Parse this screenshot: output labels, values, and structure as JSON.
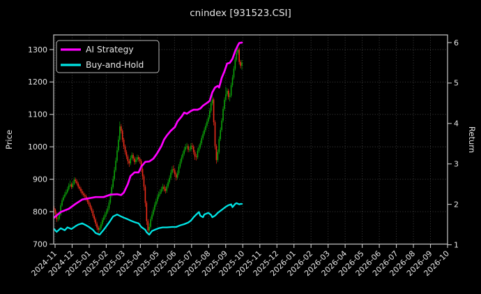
{
  "figure": {
    "title": "cnindex [931523.CSI]"
  },
  "legend": {
    "items": [
      {
        "label": "AI Strategy",
        "color": "#ff00ff"
      },
      {
        "label": "Buy-and-Hold",
        "color": "#00e5e5"
      }
    ]
  },
  "chart_data": {
    "type": "candlestick+line",
    "title": "cnindex [931523.CSI]",
    "background": "#000000",
    "grid": true,
    "x_axis": {
      "tick_labels": [
        "2024-11",
        "2024-12",
        "2025-01",
        "2025-02",
        "2025-03",
        "2025-04",
        "2025-05",
        "2025-06",
        "2025-07",
        "2025-08",
        "2025-09",
        "2025-10",
        "2025-11",
        "2025-12",
        "2026-01",
        "2026-02",
        "2026-03",
        "2026-04",
        "2026-05",
        "2026-06",
        "2026-07",
        "2026-08",
        "2026-09",
        "2026-10"
      ],
      "label_rotation_deg": 45,
      "data_span_ticks": 11.0
    },
    "y_axis_left": {
      "label": "Price",
      "ticks": [
        700,
        800,
        900,
        1000,
        1100,
        1200,
        1300
      ],
      "range": [
        702,
        1346
      ]
    },
    "y_axis_right": {
      "label": "Return",
      "ticks": [
        1,
        2,
        3,
        4,
        5,
        6
      ],
      "range": [
        1.05,
        6.2
      ]
    },
    "candles": {
      "up_color": "#0ca30a",
      "down_color": "#ef2d1a",
      "ohlc": [
        [
          812,
          818,
          800,
          806
        ],
        [
          806,
          810,
          788,
          794
        ],
        [
          794,
          798,
          768,
          777
        ],
        [
          777,
          786,
          770,
          779
        ],
        [
          779,
          796,
          774,
          791
        ],
        [
          791,
          826,
          787,
          819
        ],
        [
          819,
          842,
          815,
          835
        ],
        [
          835,
          852,
          831,
          845
        ],
        [
          845,
          861,
          841,
          853
        ],
        [
          853,
          868,
          849,
          860
        ],
        [
          860,
          877,
          856,
          869
        ],
        [
          869,
          888,
          865,
          880
        ],
        [
          880,
          896,
          876,
          884
        ],
        [
          884,
          890,
          870,
          876
        ],
        [
          876,
          893,
          872,
          886
        ],
        [
          886,
          906,
          882,
          899
        ],
        [
          899,
          905,
          888,
          894
        ],
        [
          894,
          900,
          881,
          887
        ],
        [
          887,
          892,
          871,
          877
        ],
        [
          877,
          883,
          865,
          871
        ],
        [
          871,
          877,
          857,
          863
        ],
        [
          863,
          869,
          850,
          856
        ],
        [
          856,
          862,
          845,
          851
        ],
        [
          851,
          857,
          841,
          847
        ],
        [
          847,
          853,
          832,
          838
        ],
        [
          838,
          844,
          824,
          830
        ],
        [
          830,
          836,
          816,
          822
        ],
        [
          822,
          828,
          806,
          812
        ],
        [
          812,
          818,
          796,
          802
        ],
        [
          802,
          808,
          781,
          787
        ],
        [
          787,
          793,
          768,
          776
        ],
        [
          776,
          782,
          755,
          763
        ],
        [
          763,
          769,
          743,
          751
        ],
        [
          751,
          757,
          730,
          744
        ],
        [
          744,
          756,
          738,
          749
        ],
        [
          749,
          768,
          743,
          761
        ],
        [
          761,
          781,
          755,
          774
        ],
        [
          774,
          789,
          768,
          782
        ],
        [
          782,
          798,
          776,
          791
        ],
        [
          791,
          807,
          785,
          800
        ],
        [
          800,
          818,
          794,
          810
        ],
        [
          810,
          836,
          804,
          828
        ],
        [
          828,
          858,
          822,
          850
        ],
        [
          850,
          884,
          844,
          876
        ],
        [
          876,
          910,
          870,
          900
        ],
        [
          900,
          938,
          894,
          928
        ],
        [
          928,
          967,
          922,
          957
        ],
        [
          957,
          999,
          951,
          989
        ],
        [
          989,
          1034,
          983,
          1022
        ],
        [
          1022,
          1078,
          1016,
          1063
        ],
        [
          1063,
          1070,
          1041,
          1049
        ],
        [
          1049,
          1055,
          1014,
          1022
        ],
        [
          1022,
          1028,
          993,
          1001
        ],
        [
          1001,
          1007,
          976,
          984
        ],
        [
          984,
          990,
          962,
          970
        ],
        [
          970,
          976,
          946,
          956
        ],
        [
          956,
          962,
          938,
          949
        ],
        [
          949,
          973,
          943,
          965
        ],
        [
          965,
          983,
          959,
          975
        ],
        [
          975,
          981,
          956,
          964
        ],
        [
          964,
          970,
          945,
          953
        ],
        [
          953,
          968,
          947,
          960
        ],
        [
          960,
          976,
          954,
          968
        ],
        [
          968,
          974,
          954,
          962
        ],
        [
          962,
          968,
          948,
          956
        ],
        [
          956,
          962,
          922,
          932
        ],
        [
          932,
          938,
          899,
          909
        ],
        [
          909,
          915,
          865,
          877
        ],
        [
          877,
          883,
          815,
          827
        ],
        [
          827,
          833,
          759,
          771
        ],
        [
          771,
          777,
          728,
          742
        ],
        [
          742,
          764,
          736,
          753
        ],
        [
          753,
          785,
          747,
          777
        ],
        [
          777,
          799,
          771,
          791
        ],
        [
          791,
          814,
          785,
          806
        ],
        [
          806,
          829,
          800,
          821
        ],
        [
          821,
          840,
          815,
          832
        ],
        [
          832,
          853,
          826,
          845
        ],
        [
          845,
          862,
          839,
          854
        ],
        [
          854,
          869,
          848,
          861
        ],
        [
          861,
          877,
          855,
          869
        ],
        [
          869,
          886,
          863,
          877
        ],
        [
          877,
          883,
          862,
          870
        ],
        [
          870,
          877,
          856,
          864
        ],
        [
          864,
          886,
          858,
          878
        ],
        [
          878,
          899,
          872,
          891
        ],
        [
          891,
          912,
          885,
          904
        ],
        [
          904,
          929,
          898,
          920
        ],
        [
          920,
          940,
          914,
          931
        ],
        [
          931,
          943,
          920,
          928
        ],
        [
          928,
          934,
          907,
          915
        ],
        [
          915,
          921,
          896,
          905
        ],
        [
          905,
          927,
          899,
          919
        ],
        [
          919,
          947,
          913,
          939
        ],
        [
          939,
          962,
          933,
          954
        ],
        [
          954,
          975,
          948,
          967
        ],
        [
          967,
          987,
          961,
          979
        ],
        [
          979,
          999,
          973,
          991
        ],
        [
          991,
          1009,
          985,
          1000
        ],
        [
          1000,
          1012,
          994,
          1002
        ],
        [
          1002,
          1008,
          983,
          991
        ],
        [
          991,
          1000,
          984,
          992
        ],
        [
          992,
          1011,
          986,
          1003
        ],
        [
          1003,
          1012,
          992,
          1000
        ],
        [
          1000,
          1006,
          976,
          984
        ],
        [
          984,
          990,
          960,
          970
        ],
        [
          970,
          978,
          958,
          968
        ],
        [
          968,
          996,
          962,
          988
        ],
        [
          988,
          1007,
          982,
          999
        ],
        [
          999,
          1019,
          993,
          1011
        ],
        [
          1011,
          1035,
          1005,
          1027
        ],
        [
          1027,
          1048,
          1021,
          1040
        ],
        [
          1040,
          1060,
          1034,
          1052
        ],
        [
          1052,
          1073,
          1046,
          1065
        ],
        [
          1065,
          1086,
          1059,
          1078
        ],
        [
          1078,
          1099,
          1072,
          1091
        ],
        [
          1091,
          1119,
          1085,
          1111
        ],
        [
          1111,
          1142,
          1105,
          1134
        ],
        [
          1134,
          1160,
          1128,
          1146
        ],
        [
          1146,
          1152,
          1066,
          1076
        ],
        [
          1076,
          1082,
          992,
          1002
        ],
        [
          1002,
          1008,
          948,
          959
        ],
        [
          959,
          992,
          953,
          984
        ],
        [
          984,
          1032,
          978,
          1024
        ],
        [
          1024,
          1060,
          1018,
          1052
        ],
        [
          1052,
          1089,
          1046,
          1081
        ],
        [
          1081,
          1125,
          1075,
          1117
        ],
        [
          1117,
          1153,
          1111,
          1145
        ],
        [
          1145,
          1186,
          1139,
          1162
        ],
        [
          1162,
          1181,
          1156,
          1173
        ],
        [
          1173,
          1179,
          1146,
          1154
        ],
        [
          1154,
          1166,
          1140,
          1158
        ],
        [
          1158,
          1198,
          1152,
          1190
        ],
        [
          1190,
          1222,
          1184,
          1214
        ],
        [
          1214,
          1249,
          1208,
          1241
        ],
        [
          1241,
          1277,
          1235,
          1269
        ],
        [
          1269,
          1298,
          1263,
          1290
        ],
        [
          1290,
          1312,
          1284,
          1300
        ],
        [
          1300,
          1306,
          1254,
          1262
        ],
        [
          1262,
          1268,
          1242,
          1250
        ],
        [
          1250,
          1268,
          1238,
          1260
        ]
      ]
    },
    "series": [
      {
        "name": "AI Strategy",
        "color": "#ff00ff",
        "axis": "right",
        "line_width": 2.7,
        "points": [
          [
            0,
            1.67
          ],
          [
            5,
            1.81
          ],
          [
            11,
            1.89
          ],
          [
            16,
            2.01
          ],
          [
            21,
            2.12
          ],
          [
            26,
            2.15
          ],
          [
            31,
            2.18
          ],
          [
            37,
            2.18
          ],
          [
            42,
            2.24
          ],
          [
            47,
            2.25
          ],
          [
            50,
            2.23
          ],
          [
            52,
            2.29
          ],
          [
            55,
            2.5
          ],
          [
            57,
            2.7
          ],
          [
            60,
            2.79
          ],
          [
            63,
            2.79
          ],
          [
            65,
            2.93
          ],
          [
            68,
            3.05
          ],
          [
            71,
            3.06
          ],
          [
            74,
            3.13
          ],
          [
            77,
            3.27
          ],
          [
            80,
            3.44
          ],
          [
            82,
            3.6
          ],
          [
            84,
            3.7
          ],
          [
            87,
            3.82
          ],
          [
            90,
            3.91
          ],
          [
            92,
            4.05
          ],
          [
            95,
            4.17
          ],
          [
            97,
            4.27
          ],
          [
            99,
            4.24
          ],
          [
            102,
            4.31
          ],
          [
            104,
            4.34
          ],
          [
            107,
            4.34
          ],
          [
            109,
            4.37
          ],
          [
            111,
            4.44
          ],
          [
            114,
            4.51
          ],
          [
            116,
            4.56
          ],
          [
            118,
            4.77
          ],
          [
            120,
            4.89
          ],
          [
            122,
            4.93
          ],
          [
            123,
            4.89
          ],
          [
            125,
            5.13
          ],
          [
            127,
            5.29
          ],
          [
            129,
            5.48
          ],
          [
            131,
            5.5
          ],
          [
            133,
            5.6
          ],
          [
            135,
            5.79
          ],
          [
            137,
            5.93
          ],
          [
            138,
            5.99
          ],
          [
            140,
            6.0
          ]
        ]
      },
      {
        "name": "Buy-and-Hold",
        "color": "#00e5e5",
        "axis": "right",
        "line_width": 2.3,
        "points": [
          [
            0,
            1.39
          ],
          [
            2,
            1.32
          ],
          [
            5,
            1.41
          ],
          [
            8,
            1.36
          ],
          [
            10,
            1.43
          ],
          [
            13,
            1.39
          ],
          [
            16,
            1.46
          ],
          [
            18,
            1.5
          ],
          [
            21,
            1.53
          ],
          [
            24,
            1.48
          ],
          [
            26,
            1.44
          ],
          [
            29,
            1.37
          ],
          [
            31,
            1.29
          ],
          [
            34,
            1.25
          ],
          [
            37,
            1.37
          ],
          [
            39,
            1.46
          ],
          [
            42,
            1.6
          ],
          [
            44,
            1.7
          ],
          [
            47,
            1.75
          ],
          [
            50,
            1.7
          ],
          [
            52,
            1.67
          ],
          [
            55,
            1.63
          ],
          [
            57,
            1.6
          ],
          [
            60,
            1.56
          ],
          [
            63,
            1.53
          ],
          [
            65,
            1.44
          ],
          [
            68,
            1.37
          ],
          [
            69,
            1.31
          ],
          [
            71,
            1.25
          ],
          [
            73,
            1.34
          ],
          [
            75,
            1.37
          ],
          [
            78,
            1.41
          ],
          [
            81,
            1.43
          ],
          [
            84,
            1.43
          ],
          [
            88,
            1.44
          ],
          [
            91,
            1.44
          ],
          [
            94,
            1.48
          ],
          [
            97,
            1.51
          ],
          [
            100,
            1.55
          ],
          [
            102,
            1.6
          ],
          [
            104,
            1.68
          ],
          [
            106,
            1.75
          ],
          [
            108,
            1.81
          ],
          [
            109,
            1.72
          ],
          [
            111,
            1.68
          ],
          [
            112,
            1.75
          ],
          [
            115,
            1.79
          ],
          [
            117,
            1.74
          ],
          [
            118,
            1.68
          ],
          [
            120,
            1.72
          ],
          [
            122,
            1.79
          ],
          [
            124,
            1.84
          ],
          [
            126,
            1.89
          ],
          [
            128,
            1.94
          ],
          [
            130,
            1.98
          ],
          [
            132,
            2.0
          ],
          [
            133,
            1.93
          ],
          [
            135,
            2.01
          ],
          [
            136,
            2.03
          ],
          [
            138,
            2.0
          ],
          [
            139,
            2.01
          ],
          [
            140,
            2.01
          ]
        ]
      }
    ]
  }
}
